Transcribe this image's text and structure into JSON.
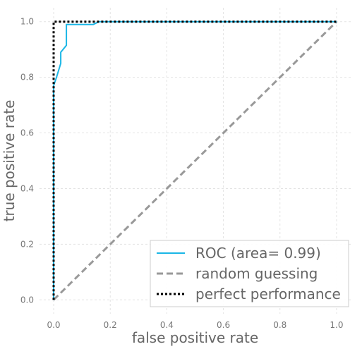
{
  "chart_data": {
    "type": "line",
    "xlabel": "false positive rate",
    "ylabel": "true positive rate",
    "xlim": [
      -0.05,
      1.05
    ],
    "ylim": [
      -0.05,
      1.05
    ],
    "xticks": [
      "0.0",
      "0.2",
      "0.4",
      "0.6",
      "0.8",
      "1.0"
    ],
    "yticks": [
      "0.0",
      "0.2",
      "0.4",
      "0.6",
      "0.8",
      "1.0"
    ],
    "grid": true,
    "legend_position": "lower-right",
    "series": [
      {
        "name": "ROC (area= 0.99)",
        "style": "solid",
        "color": "#1ab6e6",
        "x": [
          0.0,
          0.0,
          0.0,
          0.01,
          0.01,
          0.025,
          0.025,
          0.045,
          0.045,
          0.14,
          0.16,
          1.0
        ],
        "y": [
          0.0,
          0.0,
          0.77,
          0.8,
          0.8,
          0.85,
          0.89,
          0.915,
          0.99,
          0.99,
          1.0,
          1.0
        ]
      },
      {
        "name": "random guessing",
        "style": "dashed",
        "color": "#999999",
        "x": [
          0.0,
          1.0
        ],
        "y": [
          0.0,
          1.0
        ]
      },
      {
        "name": "perfect performance",
        "style": "dotted",
        "color": "#000000",
        "x": [
          0.0,
          0.0,
          1.0
        ],
        "y": [
          0.0,
          1.0,
          1.0
        ]
      }
    ]
  }
}
